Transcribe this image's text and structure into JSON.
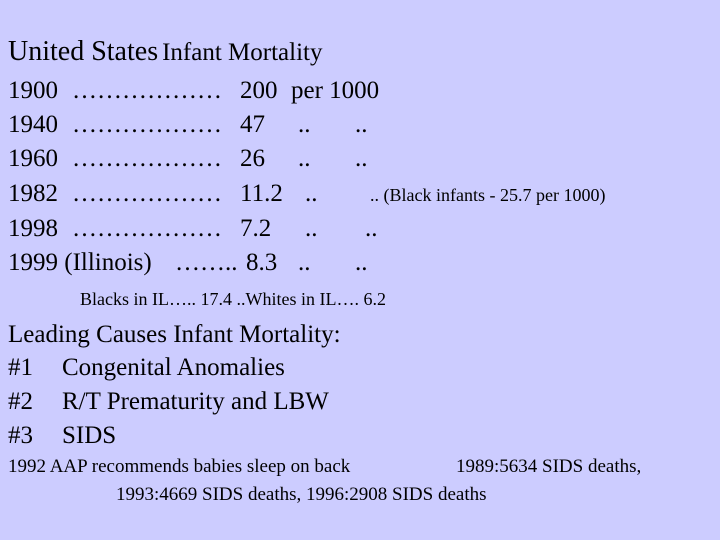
{
  "slide": {
    "title": {
      "part1": "United States",
      "part2": "Infant Mortality"
    },
    "rows": [
      {
        "year": "1900",
        "dots": "………………",
        "value": "200",
        "unit": "per 1000",
        "extra": ""
      },
      {
        "year": "1940",
        "dots": "………………",
        "value": "47",
        "unit": "..",
        "extra": ".."
      },
      {
        "year": "1960",
        "dots": "………………",
        "value": "26",
        "unit": "..",
        "extra": ".."
      },
      {
        "year": "1982",
        "dots": "………………",
        "value": "11.2",
        "unit": "..",
        "extra": ".. (Black infants - 25.7 per 1000)"
      },
      {
        "year": "1998",
        "dots": "………………",
        "value": "7.2",
        "unit": "..",
        "extra": ".."
      },
      {
        "year": "1999 (Illinois)",
        "dots": "……..",
        "value": "8.3",
        "unit": "..",
        "extra": ".."
      }
    ],
    "illinois_note": "Blacks in IL….. 17.4 ..Whites in IL…. 6.2",
    "leading_causes": {
      "heading": "Leading Causes Infant Mortality:",
      "items": [
        {
          "rank": "#1",
          "label": "Congenital Anomalies"
        },
        {
          "rank": "#2",
          "label": "R/T Prematurity and LBW"
        },
        {
          "rank": "#3",
          "label": "SIDS"
        }
      ]
    },
    "footer": {
      "line1_left": "1992 AAP recommends babies sleep on back",
      "line1_right": "1989:5634 SIDS deaths,",
      "line2": "1993:4669 SIDS deaths, 1996:2908 SIDS deaths"
    }
  }
}
